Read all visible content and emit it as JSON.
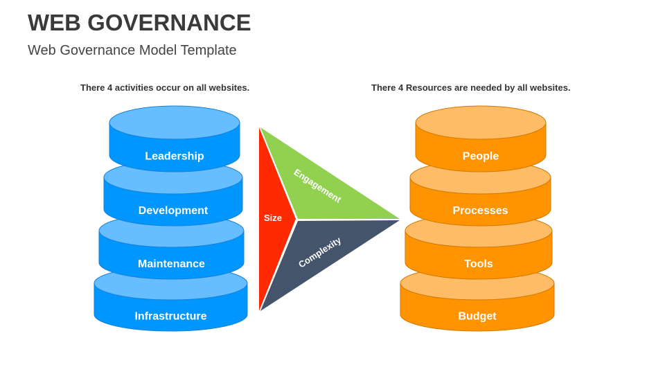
{
  "title": "WEB GOVERNANCE",
  "subtitle": "Web Governance Model Template",
  "left": {
    "caption": "There 4 activities occur on all websites.",
    "items": [
      "Leadership",
      "Development",
      "Maintenance",
      "Infrastructure"
    ],
    "colors": {
      "body": "#0096FF",
      "top": "#66BDFF",
      "stroke": "#1780D4"
    }
  },
  "right": {
    "caption": "There 4 Resources are needed by all websites.",
    "items": [
      "People",
      "Processes",
      "Tools",
      "Budget"
    ],
    "colors": {
      "body": "#FF9300",
      "top": "#FFBC66",
      "stroke": "#D07800"
    }
  },
  "triangle": {
    "size": {
      "label": "Size",
      "color": "#FF2A00"
    },
    "engagement": {
      "label": "Engagement",
      "color": "#92D050"
    },
    "complexity": {
      "label": "Complexity",
      "color": "#44546A"
    }
  }
}
